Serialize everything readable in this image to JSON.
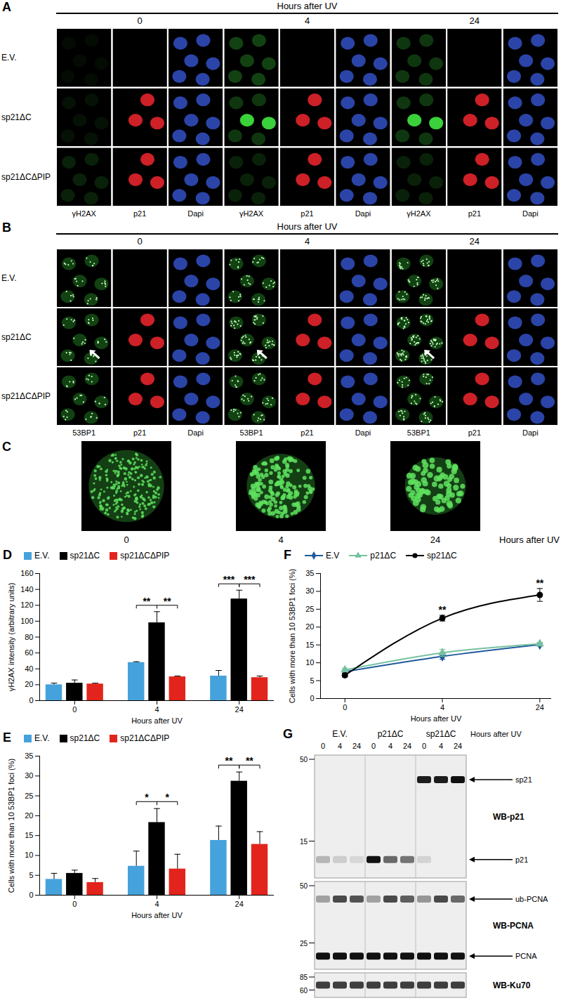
{
  "chart_data": [
    {
      "panel": "D",
      "type": "bar",
      "categories": [
        0,
        4,
        24
      ],
      "xlabel": "Hours after UV",
      "ylabel": "γH2AX intensity (arbitrary units)",
      "series": [
        {
          "name": "E.V.",
          "color": "#45a2dc",
          "values": [
            20,
            48,
            31
          ],
          "errors": [
            2,
            1,
            7
          ]
        },
        {
          "name": "sp21ΔC",
          "color": "#000000",
          "values": [
            22,
            98,
            128
          ],
          "errors": [
            4,
            14,
            11
          ]
        },
        {
          "name": "sp21ΔCΔPIP",
          "color": "#e3241c",
          "values": [
            21,
            30,
            29
          ],
          "errors": [
            1,
            1,
            2
          ]
        }
      ],
      "ylim": [
        0,
        160
      ],
      "yticks": [
        0,
        20,
        40,
        60,
        80,
        100,
        120,
        140,
        160
      ],
      "legend": "top",
      "annotations": [
        {
          "category": 4,
          "between": [
            "E.V.",
            "sp21ΔC"
          ],
          "text": "**"
        },
        {
          "category": 4,
          "between": [
            "sp21ΔC",
            "sp21ΔCΔPIP"
          ],
          "text": "**"
        },
        {
          "category": 24,
          "between": [
            "E.V.",
            "sp21ΔC"
          ],
          "text": "***"
        },
        {
          "category": 24,
          "between": [
            "sp21ΔC",
            "sp21ΔCΔPIP"
          ],
          "text": "***"
        }
      ]
    },
    {
      "panel": "E",
      "type": "bar",
      "categories": [
        0,
        4,
        24
      ],
      "xlabel": "Hours after UV",
      "ylabel": "Cells with more than 10 53BP1 foci (%)",
      "series": [
        {
          "name": "E.V.",
          "color": "#45a2dc",
          "values": [
            4,
            7.3,
            13.8
          ],
          "errors": [
            1.5,
            3.8,
            3.6
          ]
        },
        {
          "name": "sp21ΔC",
          "color": "#000000",
          "values": [
            5.5,
            18.3,
            28.7
          ],
          "errors": [
            0.8,
            3.5,
            2.3
          ]
        },
        {
          "name": "sp21ΔCΔPIP",
          "color": "#e3241c",
          "values": [
            3.2,
            6.6,
            12.8
          ],
          "errors": [
            1,
            3.7,
            3.2
          ]
        }
      ],
      "ylim": [
        0,
        35
      ],
      "yticks": [
        0,
        5,
        10,
        15,
        20,
        25,
        30,
        35
      ],
      "legend": "top",
      "annotations": [
        {
          "category": 4,
          "between": [
            "E.V.",
            "sp21ΔC"
          ],
          "text": "*"
        },
        {
          "category": 4,
          "between": [
            "sp21ΔC",
            "sp21ΔCΔPIP"
          ],
          "text": "*"
        },
        {
          "category": 24,
          "between": [
            "E.V.",
            "sp21ΔC"
          ],
          "text": "**"
        },
        {
          "category": 24,
          "between": [
            "sp21ΔC",
            "sp21ΔCΔPIP"
          ],
          "text": "**"
        }
      ]
    },
    {
      "panel": "F",
      "type": "line",
      "categories": [
        0,
        4,
        24
      ],
      "xlabel": "Hours after UV",
      "ylabel": "Cells with more than 10 53BP1 foci (%)",
      "series": [
        {
          "name": "E.V",
          "color": "#1f5a9e",
          "marker": "diamond",
          "values": [
            7.5,
            11.8,
            15.1
          ],
          "errors": [
            0.5,
            0.8,
            0.4
          ]
        },
        {
          "name": "p21ΔC",
          "color": "#76c1a0",
          "marker": "triangle",
          "values": [
            8,
            12.8,
            15.3
          ],
          "errors": [
            0.5,
            1,
            0.4
          ]
        },
        {
          "name": "sp21ΔC",
          "color": "#000000",
          "marker": "circle",
          "values": [
            6.5,
            22.5,
            29
          ],
          "errors": [
            0.5,
            0.8,
            1.8
          ]
        }
      ],
      "ylim": [
        0,
        35
      ],
      "yticks": [
        0,
        5,
        10,
        15,
        20,
        25,
        30,
        35
      ],
      "legend": "top",
      "annotations": [
        {
          "category": 4,
          "series": "sp21ΔC",
          "text": "**"
        },
        {
          "category": 24,
          "series": "sp21ΔC",
          "text": "**"
        }
      ]
    }
  ],
  "image_panels": [
    {
      "panel": "A",
      "header": "Hours after UV",
      "times": [
        0,
        4,
        24
      ],
      "rows": [
        "E.V.",
        "sp21ΔC",
        "sp21ΔCΔPIP"
      ],
      "channels": [
        "γH2AX",
        "p21",
        "Dapi"
      ]
    },
    {
      "panel": "B",
      "header": "Hours after UV",
      "times": [
        0,
        4,
        24
      ],
      "rows": [
        "E.V.",
        "sp21ΔC",
        "sp21ΔCΔPIP"
      ],
      "channels": [
        "53BP1",
        "p21",
        "Dapi"
      ]
    },
    {
      "panel": "C",
      "times": [
        0,
        4,
        24
      ],
      "caption": "Hours after UV"
    }
  ],
  "blot": {
    "panel": "G",
    "header": "Hours after UV",
    "groups": [
      "E.V.",
      "p21ΔC",
      "sp21ΔC"
    ],
    "times": [
      0,
      4,
      24
    ],
    "blots": [
      {
        "label": "WB-p21",
        "markers": [
          50,
          15
        ],
        "bands": [
          {
            "name": "sp21",
            "intensity": [
              0,
              0,
              0,
              0,
              0,
              0,
              0.95,
              0.95,
              1
            ]
          },
          {
            "name": "p21",
            "intensity": [
              0.25,
              0.15,
              0.1,
              1,
              0.6,
              0.55,
              0.12,
              0,
              0
            ]
          }
        ]
      },
      {
        "label": "WB-PCNA",
        "markers": [
          50,
          25
        ],
        "bands": [
          {
            "name": "ub-PCNA",
            "intensity": [
              0.35,
              0.75,
              0.7,
              0.35,
              0.75,
              0.65,
              0.4,
              0.75,
              0.6
            ]
          },
          {
            "name": "PCNA",
            "intensity": [
              1,
              1,
              1,
              1,
              1,
              1,
              1,
              1,
              1
            ]
          }
        ]
      },
      {
        "label": "WB-Ku70",
        "markers": [
          85,
          60
        ],
        "bands": [
          {
            "intensity": [
              0.8,
              0.8,
              0.8,
              0.8,
              0.8,
              0.8,
              0.8,
              0.8,
              0.8
            ]
          }
        ]
      }
    ]
  }
}
